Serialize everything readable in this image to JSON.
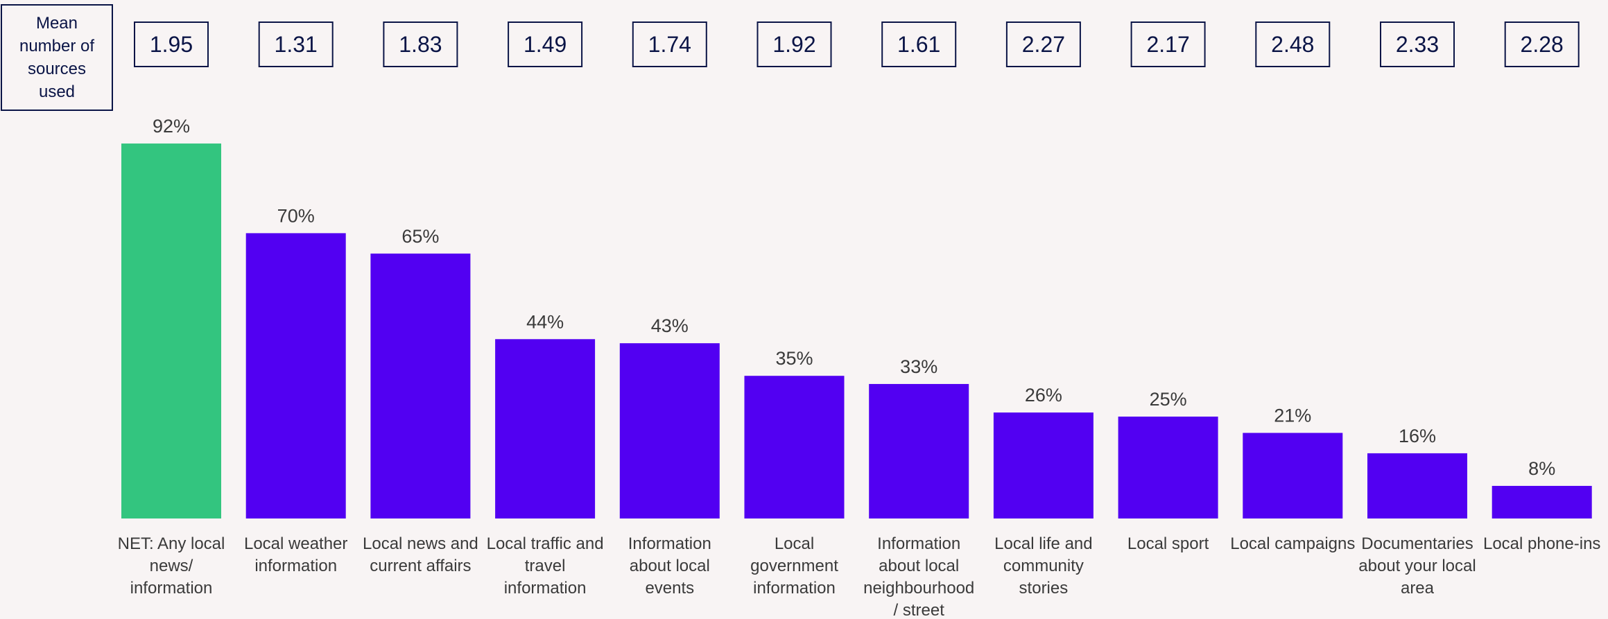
{
  "mean_label": "Mean\nnumber of\nsources\nused",
  "colors": {
    "background": "#f8f4f4",
    "highlight_bar": "#33c57f",
    "bar": "#5200f2",
    "box_border": "#0a1446",
    "box_text": "#0a1446",
    "text": "#3a3a3a"
  },
  "chart_data": {
    "type": "bar",
    "categories": [
      "NET: Any local news/ information",
      "Local weather information",
      "Local news and current affairs",
      "Local traffic and travel information",
      "Information about local events",
      "Local government information",
      "Information about local neighbourhood / street",
      "Local life and community stories",
      "Local sport",
      "Local campaigns",
      "Documentaries about your local area",
      "Local phone-ins"
    ],
    "category_lines": [
      [
        "NET: Any local",
        "news/",
        "information"
      ],
      [
        "Local weather",
        "information"
      ],
      [
        "Local news and",
        "current affairs"
      ],
      [
        "Local traffic and",
        "travel",
        "information"
      ],
      [
        "Information",
        "about local",
        "events"
      ],
      [
        "Local",
        "government",
        "information"
      ],
      [
        "Information",
        "about local",
        "neighbourhood",
        "/ street"
      ],
      [
        "Local life and",
        "community",
        "stories"
      ],
      [
        "Local sport"
      ],
      [
        "Local campaigns"
      ],
      [
        "Documentaries",
        "about your local",
        "area"
      ],
      [
        "Local phone-ins"
      ]
    ],
    "values": [
      92,
      70,
      65,
      44,
      43,
      35,
      33,
      26,
      25,
      21,
      16,
      8
    ],
    "value_labels": [
      "92%",
      "70%",
      "65%",
      "44%",
      "43%",
      "35%",
      "33%",
      "26%",
      "25%",
      "21%",
      "16%",
      "8%"
    ],
    "mean_sources": [
      "1.95",
      "1.31",
      "1.83",
      "1.49",
      "1.74",
      "1.92",
      "1.61",
      "2.27",
      "2.17",
      "2.48",
      "2.33",
      "2.28"
    ],
    "highlight_index": 0,
    "ylim": [
      0,
      100
    ],
    "grid": false,
    "legend": "none"
  }
}
